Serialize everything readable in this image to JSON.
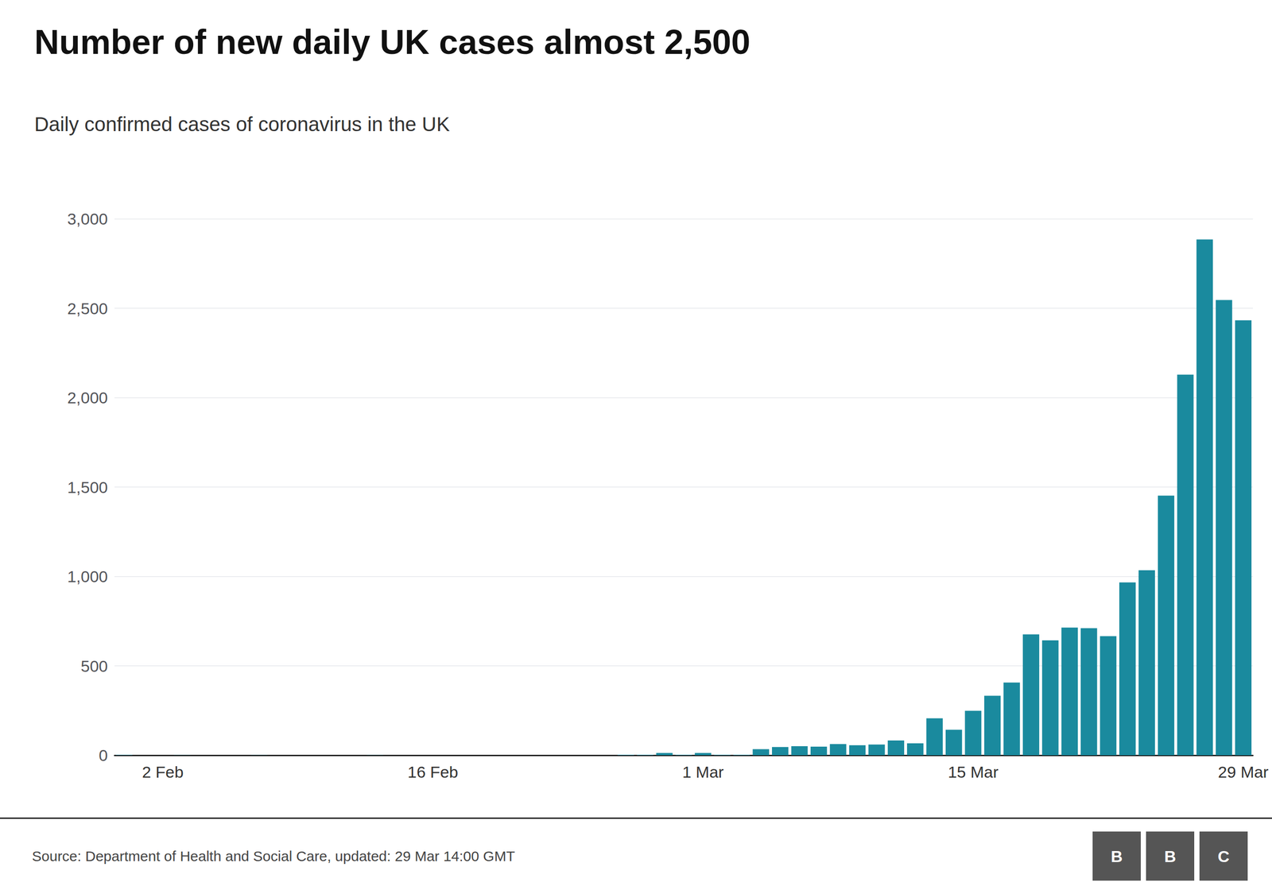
{
  "chart_data": {
    "type": "bar",
    "title": "Number of new daily UK cases almost 2,500",
    "subtitle": "Daily confirmed cases of coronavirus in the UK",
    "source": "Source: Department of Health and Social Care, updated: 29 Mar 14:00 GMT",
    "logo": "BBC",
    "categories": [
      null,
      null,
      "2 Feb",
      null,
      null,
      null,
      null,
      null,
      null,
      null,
      null,
      null,
      null,
      null,
      null,
      null,
      "16 Feb",
      null,
      null,
      null,
      null,
      null,
      null,
      null,
      null,
      null,
      null,
      null,
      null,
      null,
      "1 Mar",
      null,
      null,
      null,
      null,
      null,
      null,
      null,
      null,
      null,
      null,
      null,
      null,
      null,
      "15 Mar",
      null,
      null,
      null,
      null,
      null,
      null,
      null,
      null,
      null,
      null,
      null,
      null,
      null,
      "29 Mar"
    ],
    "values": [
      2,
      0,
      0,
      1,
      0,
      0,
      0,
      1,
      0,
      0,
      0,
      0,
      0,
      1,
      0,
      0,
      0,
      0,
      0,
      0,
      0,
      0,
      0,
      0,
      0,
      0,
      3,
      3,
      13,
      3,
      13,
      3,
      3,
      34,
      46,
      51,
      48,
      63,
      56,
      60,
      83,
      67,
      207,
      143,
      249,
      333,
      407,
      676,
      643,
      714,
      711,
      666,
      967,
      1035,
      1452,
      2129,
      2885,
      2546,
      2433
    ],
    "color": "#1a8a9e",
    "ylim": [
      0,
      3000
    ],
    "yticks": [
      0,
      500,
      {
        "value": 1000,
        "label": "1,000"
      },
      {
        "value": 1500,
        "label": "1,500"
      },
      {
        "value": 2000,
        "label": "2,000"
      },
      {
        "value": 2500,
        "label": "2,500"
      },
      {
        "value": 3000,
        "label": "3,000"
      }
    ],
    "grid": true
  }
}
